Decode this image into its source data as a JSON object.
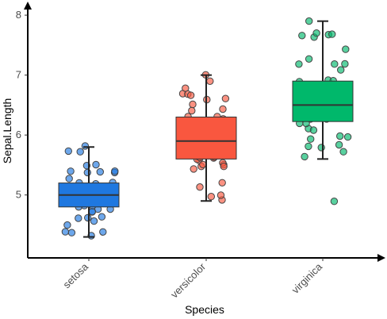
{
  "chart_data": {
    "type": "box",
    "xlabel": "Species",
    "ylabel": "Sepal.Length",
    "ylim": [
      3.95,
      8.2
    ],
    "yticks": [
      5,
      6,
      7,
      8
    ],
    "ytick_labels": [
      "5",
      "6",
      "7",
      "8"
    ],
    "categories": [
      "setosa",
      "versicolor",
      "virginica"
    ],
    "colors": [
      "#1f78e0",
      "#f9573f",
      "#00b86b"
    ],
    "boxes": [
      {
        "category": "setosa",
        "whisker_low": 4.3,
        "q1": 4.8,
        "median": 5.0,
        "q3": 5.2,
        "whisker_high": 5.8
      },
      {
        "category": "versicolor",
        "whisker_low": 4.9,
        "q1": 5.6,
        "median": 5.9,
        "q3": 6.3,
        "whisker_high": 7.0
      },
      {
        "category": "virginica",
        "whisker_low": 5.6,
        "q1": 6.225,
        "median": 6.5,
        "q3": 6.9,
        "whisker_high": 7.9
      }
    ],
    "points": {
      "setosa": [
        5.1,
        4.9,
        4.7,
        4.6,
        5.0,
        5.4,
        4.6,
        5.0,
        4.4,
        4.9,
        5.4,
        4.8,
        4.8,
        4.3,
        5.8,
        5.7,
        5.4,
        5.1,
        5.7,
        5.1,
        5.4,
        5.1,
        4.6,
        5.1,
        4.8,
        5.0,
        5.0,
        5.2,
        5.2,
        4.7,
        4.8,
        5.4,
        5.2,
        5.5,
        4.9,
        5.0,
        5.5,
        4.9,
        4.4,
        5.1,
        5.0,
        4.5,
        4.4,
        5.0,
        5.1,
        4.8,
        5.1,
        4.6,
        5.3,
        5.0
      ],
      "versicolor": [
        7.0,
        6.4,
        6.9,
        5.5,
        6.5,
        5.7,
        6.3,
        4.9,
        6.6,
        5.2,
        5.0,
        5.9,
        6.0,
        6.1,
        5.6,
        6.7,
        5.6,
        5.8,
        6.2,
        5.6,
        5.9,
        6.1,
        6.3,
        6.1,
        6.4,
        6.6,
        6.8,
        6.7,
        6.0,
        5.7,
        5.5,
        5.5,
        5.8,
        6.0,
        5.4,
        6.0,
        6.7,
        6.3,
        5.6,
        5.5,
        5.5,
        6.1,
        5.8,
        5.0,
        5.6,
        5.7,
        5.7,
        6.2,
        5.1,
        5.7
      ],
      "virginica": [
        6.3,
        5.8,
        7.1,
        6.3,
        6.5,
        7.6,
        4.9,
        7.3,
        6.7,
        7.2,
        6.5,
        6.4,
        6.8,
        5.7,
        5.8,
        6.4,
        6.5,
        7.7,
        7.7,
        6.0,
        6.9,
        5.6,
        7.7,
        6.3,
        6.7,
        7.2,
        6.2,
        6.1,
        6.4,
        7.2,
        7.4,
        7.9,
        6.4,
        6.3,
        6.1,
        7.7,
        6.3,
        6.4,
        6.0,
        6.9,
        6.7,
        6.9,
        5.8,
        6.8,
        6.7,
        6.7,
        6.3,
        6.5,
        6.2,
        5.9
      ]
    }
  }
}
